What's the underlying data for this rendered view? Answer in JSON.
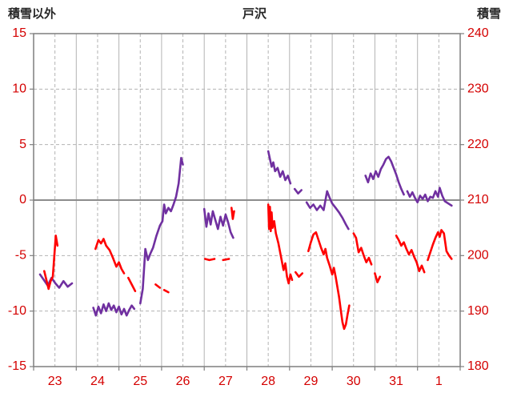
{
  "header": {
    "left_label": "積雪以外",
    "title": "戸沢",
    "right_label": "積雪"
  },
  "chart_data": {
    "type": "line",
    "title": "戸沢",
    "x_axis": {
      "range": [
        23,
        33
      ],
      "day_labels": [
        "23",
        "24",
        "25",
        "26",
        "27",
        "28",
        "29",
        "30",
        "31",
        "1"
      ],
      "gridlines": "solid at each day start, dashed at each midday"
    },
    "y_axis_left": {
      "label": "積雪以外",
      "range": [
        -15,
        15
      ],
      "tick_labels": [
        "15",
        "10",
        "5",
        "0",
        "-5",
        "-10",
        "-15"
      ],
      "tick_values": [
        15,
        10,
        5,
        0,
        -5,
        -10,
        -15
      ]
    },
    "y_axis_right": {
      "label": "積雪",
      "range": [
        180,
        240
      ],
      "tick_labels": [
        "240",
        "230",
        "220",
        "210",
        "200",
        "190",
        "180"
      ]
    },
    "grid": true,
    "colors": {
      "red_series": "#ff0000",
      "purple_series": "#7030a0",
      "tick_label": "#d40000",
      "gridline": "#b3b3b3",
      "zero_line": "#8c8c8c",
      "border": "#7f7f7f",
      "header_text": "#262626"
    },
    "series": [
      {
        "name": "purple-series",
        "color": "#7030a0",
        "axis": "left",
        "segments": [
          [
            [
              23.15,
              -6.7
            ],
            [
              23.24,
              -7.2
            ],
            [
              23.33,
              -7.7
            ],
            [
              23.42,
              -7.0
            ],
            [
              23.51,
              -7.5
            ],
            [
              23.6,
              -7.9
            ],
            [
              23.7,
              -7.3
            ],
            [
              23.8,
              -7.8
            ],
            [
              23.9,
              -7.5
            ]
          ],
          [
            [
              24.4,
              -9.7
            ],
            [
              24.46,
              -10.4
            ],
            [
              24.52,
              -9.6
            ],
            [
              24.58,
              -10.2
            ],
            [
              24.64,
              -9.4
            ],
            [
              24.7,
              -10.0
            ],
            [
              24.76,
              -9.3
            ],
            [
              24.82,
              -9.9
            ],
            [
              24.88,
              -9.5
            ],
            [
              24.94,
              -10.1
            ],
            [
              25.0,
              -9.6
            ],
            [
              25.06,
              -10.3
            ],
            [
              25.12,
              -9.8
            ],
            [
              25.18,
              -10.4
            ],
            [
              25.24,
              -9.9
            ],
            [
              25.3,
              -9.5
            ],
            [
              25.36,
              -9.8
            ]
          ],
          [
            [
              25.5,
              -9.3
            ],
            [
              25.56,
              -8.0
            ],
            [
              25.62,
              -4.4
            ],
            [
              25.68,
              -5.4
            ],
            [
              25.74,
              -4.8
            ],
            [
              25.8,
              -4.3
            ],
            [
              25.88,
              -3.2
            ],
            [
              25.96,
              -2.3
            ],
            [
              26.02,
              -1.9
            ],
            [
              26.06,
              -0.4
            ],
            [
              26.1,
              -1.2
            ],
            [
              26.16,
              -0.7
            ],
            [
              26.22,
              -1.0
            ],
            [
              26.28,
              -0.4
            ],
            [
              26.34,
              0.3
            ],
            [
              26.4,
              1.5
            ],
            [
              26.46,
              3.8
            ],
            [
              26.5,
              3.2
            ]
          ],
          [
            [
              27.0,
              -0.8
            ],
            [
              27.05,
              -2.4
            ],
            [
              27.1,
              -1.2
            ],
            [
              27.15,
              -2.2
            ],
            [
              27.2,
              -1.0
            ],
            [
              27.26,
              -1.8
            ],
            [
              27.32,
              -2.6
            ],
            [
              27.38,
              -1.5
            ],
            [
              27.44,
              -2.3
            ],
            [
              27.5,
              -1.3
            ],
            [
              27.56,
              -2.0
            ],
            [
              27.62,
              -2.9
            ],
            [
              27.68,
              -3.4
            ]
          ],
          [
            [
              28.5,
              4.4
            ],
            [
              28.54,
              3.7
            ],
            [
              28.58,
              3.0
            ],
            [
              28.62,
              3.4
            ],
            [
              28.66,
              2.6
            ],
            [
              28.72,
              2.9
            ],
            [
              28.78,
              2.1
            ],
            [
              28.84,
              2.6
            ],
            [
              28.9,
              1.8
            ],
            [
              28.96,
              2.2
            ],
            [
              29.02,
              1.5
            ]
          ],
          [
            [
              29.12,
              1.0
            ],
            [
              29.2,
              0.6
            ],
            [
              29.28,
              0.9
            ]
          ],
          [
            [
              29.4,
              -0.2
            ],
            [
              29.48,
              -0.7
            ],
            [
              29.56,
              -0.4
            ],
            [
              29.64,
              -0.9
            ],
            [
              29.72,
              -0.5
            ],
            [
              29.8,
              -0.9
            ],
            [
              29.88,
              0.8
            ],
            [
              29.94,
              0.2
            ],
            [
              30.0,
              -0.3
            ],
            [
              30.08,
              -0.7
            ],
            [
              30.16,
              -1.1
            ],
            [
              30.24,
              -1.6
            ],
            [
              30.32,
              -2.2
            ],
            [
              30.38,
              -2.6
            ]
          ],
          [
            [
              30.78,
              2.2
            ],
            [
              30.84,
              1.6
            ],
            [
              30.9,
              2.4
            ],
            [
              30.96,
              1.9
            ],
            [
              31.02,
              2.6
            ],
            [
              31.08,
              2.1
            ],
            [
              31.14,
              2.8
            ],
            [
              31.2,
              3.2
            ],
            [
              31.26,
              3.7
            ],
            [
              31.32,
              3.9
            ],
            [
              31.38,
              3.5
            ],
            [
              31.44,
              2.9
            ],
            [
              31.5,
              2.3
            ],
            [
              31.56,
              1.6
            ],
            [
              31.62,
              1.0
            ],
            [
              31.68,
              0.5
            ]
          ],
          [
            [
              31.76,
              0.8
            ],
            [
              31.82,
              0.3
            ],
            [
              31.88,
              0.7
            ],
            [
              31.94,
              0.2
            ],
            [
              32.0,
              -0.2
            ],
            [
              32.06,
              0.4
            ],
            [
              32.12,
              0.1
            ],
            [
              32.18,
              0.5
            ],
            [
              32.24,
              -0.1
            ],
            [
              32.3,
              0.3
            ],
            [
              32.36,
              0.2
            ],
            [
              32.42,
              0.8
            ],
            [
              32.48,
              0.3
            ],
            [
              32.52,
              1.1
            ],
            [
              32.58,
              0.4
            ],
            [
              32.64,
              -0.1
            ],
            [
              32.72,
              -0.3
            ],
            [
              32.8,
              -0.5
            ]
          ]
        ]
      },
      {
        "name": "red-series",
        "color": "#ff0000",
        "axis": "left",
        "segments": [
          [
            [
              23.25,
              -6.4
            ],
            [
              23.3,
              -7.2
            ],
            [
              23.35,
              -8.0
            ],
            [
              23.4,
              -7.3
            ],
            [
              23.45,
              -6.9
            ],
            [
              23.52,
              -3.2
            ],
            [
              23.56,
              -4.1
            ]
          ],
          [
            [
              24.45,
              -4.4
            ],
            [
              24.52,
              -3.6
            ],
            [
              24.58,
              -3.9
            ],
            [
              24.64,
              -3.5
            ],
            [
              24.7,
              -4.1
            ],
            [
              24.78,
              -4.5
            ],
            [
              24.86,
              -5.2
            ],
            [
              24.94,
              -6.0
            ],
            [
              25.0,
              -5.6
            ],
            [
              25.06,
              -6.2
            ],
            [
              25.12,
              -6.6
            ]
          ],
          [
            [
              25.22,
              -7.0
            ],
            [
              25.3,
              -7.6
            ],
            [
              25.38,
              -8.2
            ]
          ],
          [
            [
              25.86,
              -7.6
            ],
            [
              25.96,
              -7.9
            ]
          ],
          [
            [
              26.06,
              -8.1
            ],
            [
              26.16,
              -8.3
            ]
          ],
          [
            [
              27.02,
              -5.3
            ],
            [
              27.12,
              -5.4
            ],
            [
              27.24,
              -5.3
            ]
          ],
          [
            [
              27.44,
              -5.4
            ],
            [
              27.58,
              -5.3
            ]
          ],
          [
            [
              27.64,
              -0.7
            ],
            [
              27.67,
              -1.7
            ],
            [
              27.7,
              -1.0
            ]
          ],
          [
            [
              28.5,
              -0.4
            ],
            [
              28.52,
              -2.6
            ],
            [
              28.54,
              -0.6
            ],
            [
              28.56,
              -2.8
            ],
            [
              28.58,
              -1.1
            ],
            [
              28.6,
              -2.5
            ],
            [
              28.64,
              -1.9
            ],
            [
              28.68,
              -3.0
            ],
            [
              28.74,
              -3.9
            ],
            [
              28.8,
              -5.1
            ],
            [
              28.86,
              -6.3
            ],
            [
              28.9,
              -5.7
            ],
            [
              28.94,
              -6.9
            ],
            [
              28.98,
              -7.5
            ],
            [
              29.02,
              -6.7
            ],
            [
              29.06,
              -7.2
            ]
          ],
          [
            [
              29.14,
              -6.5
            ],
            [
              29.22,
              -6.9
            ],
            [
              29.3,
              -6.6
            ]
          ],
          [
            [
              29.44,
              -4.6
            ],
            [
              29.5,
              -3.8
            ],
            [
              29.56,
              -3.1
            ],
            [
              29.62,
              -2.9
            ],
            [
              29.68,
              -3.6
            ],
            [
              29.74,
              -4.3
            ],
            [
              29.8,
              -4.9
            ],
            [
              29.84,
              -4.4
            ],
            [
              29.88,
              -5.2
            ],
            [
              29.94,
              -5.9
            ],
            [
              30.0,
              -6.7
            ],
            [
              30.04,
              -6.1
            ],
            [
              30.08,
              -6.9
            ],
            [
              30.12,
              -7.8
            ],
            [
              30.16,
              -8.7
            ],
            [
              30.2,
              -9.9
            ],
            [
              30.24,
              -11.0
            ],
            [
              30.28,
              -11.6
            ],
            [
              30.32,
              -11.2
            ],
            [
              30.36,
              -10.3
            ],
            [
              30.4,
              -9.5
            ]
          ],
          [
            [
              30.5,
              -3.0
            ],
            [
              30.56,
              -3.4
            ],
            [
              30.62,
              -4.7
            ],
            [
              30.68,
              -4.3
            ],
            [
              30.74,
              -5.0
            ],
            [
              30.8,
              -5.6
            ],
            [
              30.86,
              -5.2
            ],
            [
              30.92,
              -5.8
            ]
          ],
          [
            [
              31.0,
              -6.6
            ],
            [
              31.06,
              -7.4
            ],
            [
              31.12,
              -6.9
            ]
          ],
          [
            [
              31.5,
              -3.2
            ],
            [
              31.56,
              -3.6
            ],
            [
              31.62,
              -4.1
            ],
            [
              31.68,
              -3.8
            ],
            [
              31.74,
              -4.4
            ],
            [
              31.8,
              -4.9
            ],
            [
              31.86,
              -4.5
            ],
            [
              31.92,
              -5.1
            ],
            [
              31.98,
              -5.6
            ],
            [
              32.04,
              -6.4
            ],
            [
              32.1,
              -5.9
            ],
            [
              32.16,
              -6.5
            ]
          ],
          [
            [
              32.24,
              -5.4
            ],
            [
              32.3,
              -4.7
            ],
            [
              32.36,
              -4.0
            ],
            [
              32.42,
              -3.4
            ],
            [
              32.48,
              -2.9
            ],
            [
              32.52,
              -3.3
            ],
            [
              32.56,
              -2.7
            ],
            [
              32.62,
              -3.0
            ],
            [
              32.68,
              -4.6
            ],
            [
              32.74,
              -5.0
            ],
            [
              32.8,
              -5.3
            ]
          ]
        ]
      }
    ]
  }
}
